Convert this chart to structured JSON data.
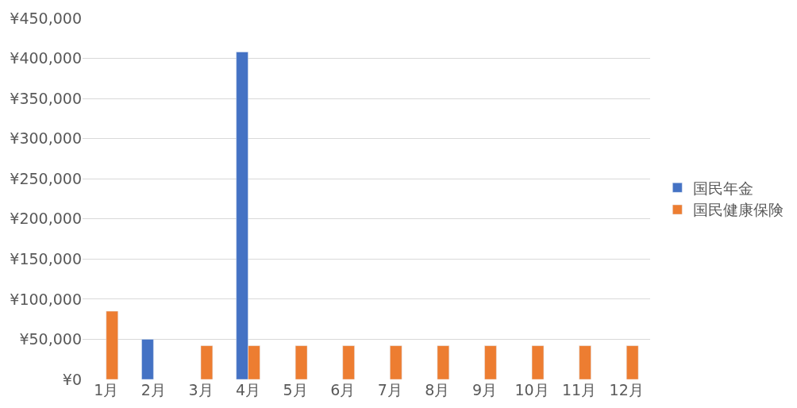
{
  "chart_data": {
    "type": "bar",
    "categories": [
      "1月",
      "2月",
      "3月",
      "4月",
      "5月",
      "6月",
      "7月",
      "8月",
      "9月",
      "10月",
      "11月",
      "12月"
    ],
    "series": [
      {
        "name": "国民年金",
        "color": "#4472c4",
        "values": [
          null,
          50000,
          null,
          408000,
          null,
          null,
          null,
          null,
          null,
          null,
          null,
          null
        ]
      },
      {
        "name": "国民健康保険",
        "color": "#ed7d31",
        "values": [
          85000,
          null,
          42000,
          42000,
          42000,
          42000,
          42000,
          42000,
          42000,
          42000,
          42000,
          42000
        ]
      }
    ],
    "ylim": [
      0,
      450000
    ],
    "yticks": [
      {
        "value": 0,
        "label": "¥0"
      },
      {
        "value": 50000,
        "label": "¥50,000"
      },
      {
        "value": 100000,
        "label": "¥100,000"
      },
      {
        "value": 150000,
        "label": "¥150,000"
      },
      {
        "value": 200000,
        "label": "¥200,000"
      },
      {
        "value": 250000,
        "label": "¥250,000"
      },
      {
        "value": 300000,
        "label": "¥300,000"
      },
      {
        "value": 350000,
        "label": "¥350,000"
      },
      {
        "value": 400000,
        "label": "¥400,000"
      },
      {
        "value": 450000,
        "label": "¥450,000"
      }
    ],
    "grid": "y",
    "legend": "right"
  }
}
